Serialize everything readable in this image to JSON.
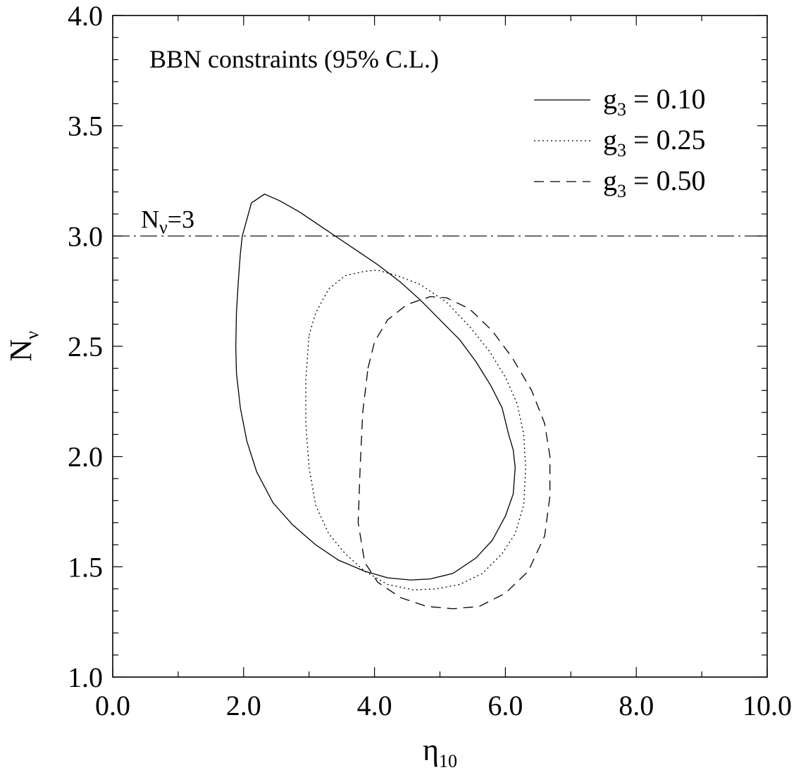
{
  "chart_data": {
    "type": "line",
    "title": "BBN constraints (95% C.L.)",
    "xlabel": {
      "main": "η",
      "sub": "10"
    },
    "ylabel": {
      "main": "N",
      "sub": "ν"
    },
    "xlim": [
      0,
      10
    ],
    "ylim": [
      1,
      4
    ],
    "x_ticks": [
      "0.0",
      "2.0",
      "4.0",
      "6.0",
      "8.0",
      "10.0"
    ],
    "y_ticks": [
      "1.0",
      "1.5",
      "2.0",
      "2.5",
      "3.0",
      "3.5",
      "4.0"
    ],
    "grid": false,
    "legend_position": "top-right",
    "reference_line": {
      "y": 3.0,
      "label_main": "N",
      "label_sub": "ν",
      "label_rest": "=3",
      "style": "dash-dot"
    },
    "series": [
      {
        "name_main": "g",
        "name_sub": "3",
        "name_rest": " = 0.10",
        "style": "solid",
        "points": [
          [
            1.98,
            3.0
          ],
          [
            2.12,
            3.15
          ],
          [
            2.32,
            3.19
          ],
          [
            2.55,
            3.16
          ],
          [
            2.85,
            3.11
          ],
          [
            3.15,
            3.05
          ],
          [
            3.45,
            2.99
          ],
          [
            3.75,
            2.93
          ],
          [
            4.05,
            2.87
          ],
          [
            4.4,
            2.79
          ],
          [
            4.7,
            2.71
          ],
          [
            5.0,
            2.62
          ],
          [
            5.3,
            2.53
          ],
          [
            5.55,
            2.43
          ],
          [
            5.78,
            2.32
          ],
          [
            5.95,
            2.22
          ],
          [
            6.05,
            2.1
          ],
          [
            6.12,
            2.03
          ],
          [
            6.15,
            1.95
          ],
          [
            6.12,
            1.83
          ],
          [
            6.0,
            1.73
          ],
          [
            5.8,
            1.62
          ],
          [
            5.55,
            1.54
          ],
          [
            5.2,
            1.47
          ],
          [
            4.85,
            1.445
          ],
          [
            4.55,
            1.44
          ],
          [
            4.2,
            1.45
          ],
          [
            3.85,
            1.48
          ],
          [
            3.45,
            1.53
          ],
          [
            3.1,
            1.6
          ],
          [
            2.75,
            1.69
          ],
          [
            2.45,
            1.79
          ],
          [
            2.2,
            1.93
          ],
          [
            2.05,
            2.07
          ],
          [
            1.95,
            2.22
          ],
          [
            1.89,
            2.38
          ],
          [
            1.88,
            2.5
          ],
          [
            1.89,
            2.65
          ],
          [
            1.92,
            2.8
          ],
          [
            1.95,
            2.92
          ],
          [
            1.98,
            3.0
          ]
        ]
      },
      {
        "name_main": "g",
        "name_sub": "3",
        "name_rest": " = 0.25",
        "style": "dotted",
        "points": [
          [
            3.0,
            2.55
          ],
          [
            3.1,
            2.65
          ],
          [
            3.3,
            2.76
          ],
          [
            3.55,
            2.82
          ],
          [
            3.85,
            2.84
          ],
          [
            4.05,
            2.845
          ],
          [
            4.35,
            2.82
          ],
          [
            4.7,
            2.78
          ],
          [
            5.1,
            2.7
          ],
          [
            5.45,
            2.59
          ],
          [
            5.75,
            2.48
          ],
          [
            6.0,
            2.36
          ],
          [
            6.18,
            2.24
          ],
          [
            6.28,
            2.1
          ],
          [
            6.31,
            1.95
          ],
          [
            6.28,
            1.78
          ],
          [
            6.15,
            1.65
          ],
          [
            5.95,
            1.56
          ],
          [
            5.65,
            1.47
          ],
          [
            5.3,
            1.42
          ],
          [
            4.95,
            1.4
          ],
          [
            4.6,
            1.395
          ],
          [
            4.2,
            1.42
          ],
          [
            3.85,
            1.48
          ],
          [
            3.55,
            1.56
          ],
          [
            3.3,
            1.65
          ],
          [
            3.1,
            1.78
          ],
          [
            3.0,
            1.95
          ],
          [
            2.95,
            2.15
          ],
          [
            2.95,
            2.35
          ],
          [
            3.0,
            2.55
          ]
        ]
      },
      {
        "name_main": "g",
        "name_sub": "3",
        "name_rest": " = 0.50",
        "style": "dashed",
        "points": [
          [
            3.9,
            2.4
          ],
          [
            4.0,
            2.52
          ],
          [
            4.2,
            2.62
          ],
          [
            4.5,
            2.69
          ],
          [
            4.85,
            2.725
          ],
          [
            5.1,
            2.72
          ],
          [
            5.45,
            2.67
          ],
          [
            5.8,
            2.57
          ],
          [
            6.1,
            2.45
          ],
          [
            6.4,
            2.3
          ],
          [
            6.6,
            2.15
          ],
          [
            6.68,
            2.0
          ],
          [
            6.68,
            1.82
          ],
          [
            6.6,
            1.64
          ],
          [
            6.35,
            1.48
          ],
          [
            6.0,
            1.38
          ],
          [
            5.6,
            1.32
          ],
          [
            5.2,
            1.31
          ],
          [
            4.8,
            1.32
          ],
          [
            4.4,
            1.36
          ],
          [
            4.05,
            1.43
          ],
          [
            3.85,
            1.52
          ],
          [
            3.75,
            1.7
          ],
          [
            3.78,
            1.95
          ],
          [
            3.82,
            2.2
          ],
          [
            3.9,
            2.4
          ]
        ]
      }
    ]
  }
}
